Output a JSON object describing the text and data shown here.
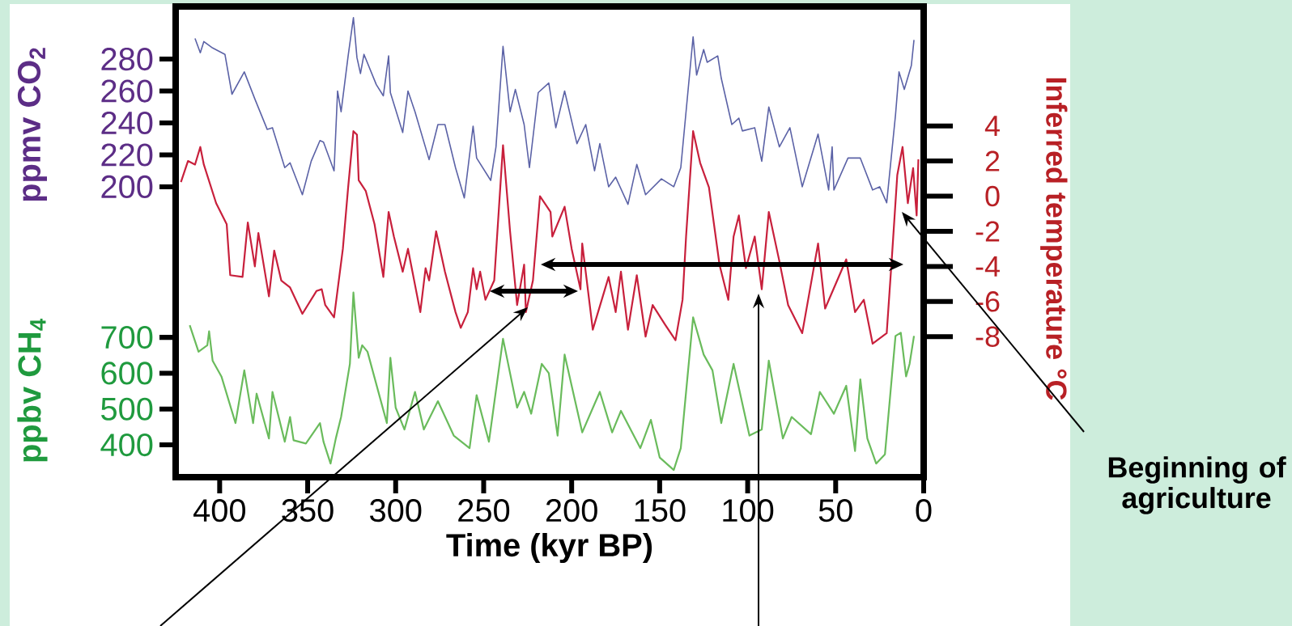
{
  "chart_data": {
    "type": "line",
    "xlabel": "Time (kyr BP)",
    "ylabel": "ppmv CO$_{2}$",
    "y2label": "Inferred temperature °C",
    "y3label": "ppbv CH$_{4}$",
    "xlim": [
      425,
      0
    ],
    "xticks": [
      400,
      350,
      300,
      250,
      200,
      150,
      100,
      50,
      0
    ],
    "ylim": [
      18,
      313
    ],
    "yticks": [
      200,
      220,
      240,
      260,
      280
    ],
    "y2lim": [
      -16,
      10.8
    ],
    "y2ticks": [
      -8,
      -6,
      -4,
      -2,
      0,
      2,
      4
    ],
    "y3lim": [
      310,
      1623
    ],
    "y3ticks": [
      400,
      500,
      600,
      700
    ],
    "annotations": [
      "Beginning of agriculture"
    ],
    "series": [
      {
        "axis": "y",
        "color": "#5b62a6",
        "x": [
          414,
          411,
          409,
          404,
          397,
          393,
          386,
          380,
          373,
          370,
          363,
          360,
          353,
          348,
          343,
          341,
          335,
          333,
          331,
          327,
          324,
          322,
          320,
          318,
          311,
          307,
          304,
          303,
          296,
          293,
          289,
          281,
          276,
          272,
          266,
          261,
          256,
          254,
          246,
          243,
          239,
          235,
          232,
          227,
          224,
          219,
          213,
          209,
          204,
          197,
          192,
          187,
          184,
          179,
          175,
          168,
          163,
          158,
          149,
          142,
          138,
          131,
          129,
          125,
          123,
          117,
          115,
          109,
          105,
          103,
          96,
          92,
          88,
          82,
          76,
          69,
          60,
          54,
          52,
          51,
          43,
          36,
          29,
          25,
          21,
          16,
          14,
          11,
          7,
          5.5
        ],
        "values": [
          293,
          284,
          291,
          287,
          283,
          258,
          272,
          255,
          236,
          237,
          212,
          215,
          195,
          216,
          229,
          228,
          210,
          260,
          247,
          282,
          306,
          281,
          271,
          283,
          264,
          257,
          282,
          259,
          234,
          260,
          247,
          217,
          239,
          239,
          212,
          193,
          238,
          218,
          204,
          225,
          288,
          247,
          261,
          239,
          212,
          259,
          265,
          237,
          260,
          227,
          239,
          210,
          227,
          200,
          206,
          189,
          214,
          195,
          205,
          200,
          212,
          294,
          270,
          286,
          278,
          282,
          268,
          239,
          243,
          235,
          237,
          216,
          250,
          225,
          237,
          200,
          233,
          198,
          225,
          198,
          218,
          218,
          198,
          200,
          190,
          245,
          272,
          261,
          276,
          292
        ]
      },
      {
        "axis": "y2",
        "color": "#c8203c",
        "x": [
          422,
          418,
          414,
          411,
          409,
          402,
          396,
          394,
          387,
          384,
          380,
          378,
          372,
          369,
          365,
          360,
          353,
          345,
          342,
          340,
          335,
          330,
          327,
          324,
          322,
          321,
          317,
          312,
          307,
          304,
          301,
          296,
          293,
          286,
          283,
          281,
          277,
          272,
          266,
          263,
          259,
          256,
          254,
          252,
          249,
          244,
          239,
          235,
          231,
          227,
          226,
          222,
          218,
          212,
          211,
          204,
          200,
          195,
          194,
          188,
          179,
          175,
          172,
          168,
          163,
          158,
          154,
          147,
          141,
          137,
          135,
          131,
          127,
          122,
          116,
          111,
          108,
          105,
          101,
          96,
          92,
          88,
          82,
          77,
          69,
          60,
          56,
          44,
          39,
          34,
          29,
          21,
          18,
          15,
          12,
          9,
          6,
          4,
          3
        ],
        "values": [
          0.8,
          2.0,
          1.8,
          2.8,
          1.8,
          -0.4,
          -1.6,
          -4.5,
          -4.6,
          -1.5,
          -4.0,
          -2.1,
          -5.7,
          -3.1,
          -4.8,
          -5.2,
          -6.7,
          -5.4,
          -5.3,
          -6.2,
          -6.9,
          -3.0,
          0.5,
          3.7,
          3.5,
          0.9,
          0.3,
          -1.6,
          -4.6,
          -0.9,
          -2.3,
          -4.3,
          -3.0,
          -6.6,
          -4.1,
          -4.8,
          -2.0,
          -4.3,
          -6.6,
          -7.5,
          -6.6,
          -4.1,
          -5.3,
          -4.3,
          -5.9,
          -4.8,
          2.9,
          -2.0,
          -6.2,
          -3.9,
          -6.6,
          -4.8,
          0.0,
          -0.9,
          -2.3,
          -0.6,
          -3.0,
          -5.3,
          -2.7,
          -7.6,
          -4.6,
          -6.6,
          -4.3,
          -7.6,
          -4.5,
          -8.0,
          -6.2,
          -7.3,
          -8.2,
          -5.9,
          -2.3,
          3.7,
          1.9,
          0.5,
          -3.9,
          -5.9,
          -2.3,
          -1.1,
          -4.1,
          -2.3,
          -5.3,
          -0.9,
          -3.7,
          -6.2,
          -7.8,
          -2.7,
          -6.4,
          -3.6,
          -6.6,
          -5.9,
          -8.4,
          -7.8,
          -3.4,
          1.2,
          2.8,
          -0.4,
          1.6,
          -1.1,
          2.1
        ]
      },
      {
        "axis": "y3",
        "color": "#6abb5c",
        "x": [
          417,
          412,
          407,
          406,
          404,
          399,
          391,
          386,
          381,
          379,
          372,
          370,
          363,
          360,
          358,
          351,
          343,
          341,
          337,
          334,
          331,
          326,
          324,
          321,
          319,
          316,
          305,
          303,
          300,
          295,
          289,
          284,
          276,
          267,
          258,
          254,
          247,
          239,
          231,
          227,
          223,
          217,
          213,
          208,
          204,
          194,
          184,
          177,
          172,
          161,
          155,
          150,
          142,
          138,
          131,
          125,
          120,
          115,
          108,
          99,
          92,
          88,
          80,
          75,
          64,
          59,
          51,
          44,
          39,
          36,
          32,
          27,
          22,
          16,
          13,
          10,
          8,
          5.5
        ],
        "values": [
          734,
          660,
          678,
          717,
          635,
          591,
          461,
          608,
          461,
          543,
          418,
          548,
          409,
          478,
          413,
          404,
          461,
          409,
          348,
          418,
          478,
          626,
          825,
          643,
          678,
          660,
          461,
          643,
          504,
          443,
          548,
          443,
          522,
          426,
          391,
          539,
          409,
          696,
          504,
          548,
          487,
          626,
          600,
          426,
          652,
          435,
          548,
          435,
          495,
          391,
          470,
          365,
          330,
          391,
          756,
          652,
          608,
          461,
          626,
          426,
          443,
          635,
          418,
          478,
          430,
          548,
          487,
          565,
          383,
          583,
          418,
          348,
          374,
          704,
          713,
          591,
          626,
          704
        ]
      }
    ]
  }
}
